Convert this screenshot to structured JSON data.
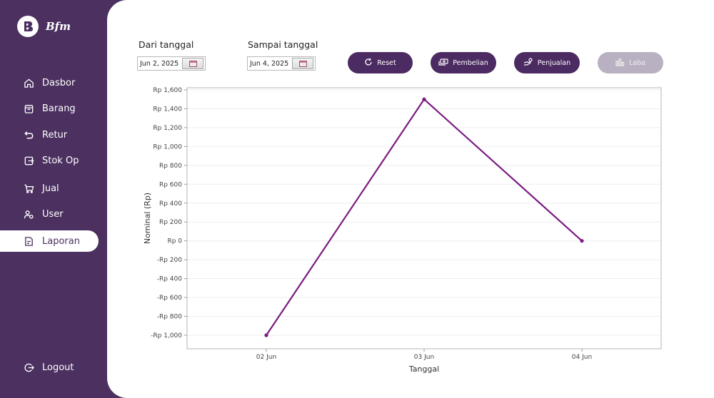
{
  "app": {
    "logo_text": "Bfm"
  },
  "sidebar": {
    "items": [
      {
        "label": "Dasbor",
        "icon": "home-icon"
      },
      {
        "label": "Barang",
        "icon": "box-icon"
      },
      {
        "label": "Retur",
        "icon": "return-icon"
      },
      {
        "label": "Stok Op",
        "icon": "stock-icon"
      },
      {
        "label": "Jual",
        "icon": "cart-icon"
      },
      {
        "label": "User",
        "icon": "users-icon"
      },
      {
        "label": "Laporan",
        "icon": "report-icon"
      }
    ],
    "active": "Laporan",
    "logout_label": "Logout"
  },
  "filters": {
    "from_label": "Dari tanggal",
    "from_value": "Jun 2, 2025",
    "to_label": "Sampai tanggal",
    "to_value": "Jun 4, 2025"
  },
  "buttons": {
    "reset": "Reset",
    "pembelian": "Pembelian",
    "penjualan": "Penjualan",
    "laba": "Laba"
  },
  "chart_data": {
    "type": "line",
    "categories": [
      "02 Jun",
      "03 Jun",
      "04 Jun"
    ],
    "values": [
      -1000,
      1500,
      0
    ],
    "xlabel": "Tanggal",
    "ylabel": "Nominal (Rp)",
    "yticks": [
      -1000,
      -800,
      -600,
      -400,
      -200,
      0,
      200,
      400,
      600,
      800,
      1000,
      1200,
      1400,
      1600
    ],
    "ytick_labels": [
      "-Rp 1,000",
      "-Rp 800",
      "-Rp 600",
      "-Rp 400",
      "-Rp 200",
      "Rp 0",
      "Rp 200",
      "Rp 400",
      "Rp 600",
      "Rp 800",
      "Rp 1,000",
      "Rp 1,200",
      "Rp 1,400",
      "Rp 1,600"
    ],
    "ylim": [
      -1000,
      1600
    ],
    "grid": true,
    "line_color": "#7b1b82"
  }
}
